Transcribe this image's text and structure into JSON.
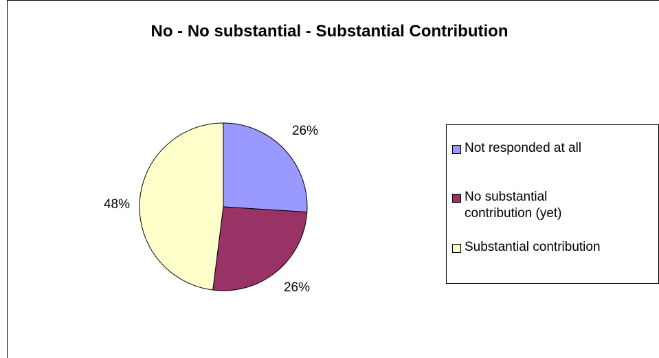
{
  "chart_data": {
    "type": "pie",
    "title": "No - No substantial - Substantial Contribution",
    "categories": [
      "Not responded at all",
      "No substantial contribution (yet)",
      "Substantial contribution"
    ],
    "values": [
      26,
      26,
      48
    ],
    "data_labels": [
      "26%",
      "26%",
      "48%"
    ],
    "colors": [
      "#9999ff",
      "#993366",
      "#ffffcc"
    ],
    "legend_position": "right"
  }
}
